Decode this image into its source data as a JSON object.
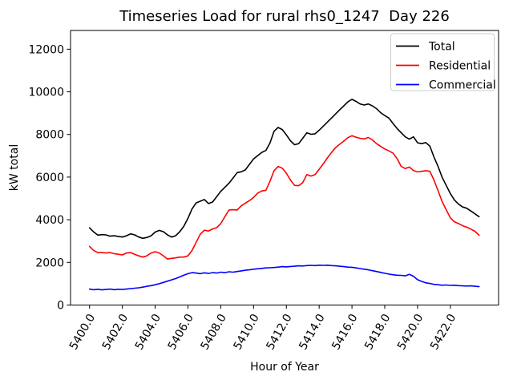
{
  "figure": {
    "background": "#ffffff"
  },
  "chart_data": {
    "type": "line",
    "title": "Timeseries Load for rural rhs0_1247  Day 226",
    "xlabel": "Hour of Year",
    "ylabel": "kW total",
    "grid": false,
    "legend_position": "upper right",
    "xlim": [
      5398.84,
      5424.94
    ],
    "ylim": [
      0,
      12878
    ],
    "xticks": {
      "values": [
        5400,
        5402,
        5404,
        5406,
        5408,
        5410,
        5412,
        5414,
        5416,
        5418,
        5420,
        5422
      ],
      "labels": [
        "5400.0",
        "5402.0",
        "5404.0",
        "5406.0",
        "5408.0",
        "5410.0",
        "5412.0",
        "5414.0",
        "5416.0",
        "5418.0",
        "5420.0",
        "5422.0"
      ]
    },
    "yticks": {
      "values": [
        0,
        2000,
        4000,
        6000,
        8000,
        10000,
        12000
      ],
      "labels": [
        "0",
        "2000",
        "4000",
        "6000",
        "8000",
        "10000",
        "12000"
      ]
    },
    "x": [
      5400.0,
      5400.25,
      5400.5,
      5400.75,
      5401.0,
      5401.25,
      5401.5,
      5401.75,
      5402.0,
      5402.25,
      5402.5,
      5402.75,
      5403.0,
      5403.25,
      5403.5,
      5403.75,
      5404.0,
      5404.25,
      5404.5,
      5404.75,
      5405.0,
      5405.25,
      5405.5,
      5405.75,
      5406.0,
      5406.25,
      5406.5,
      5406.75,
      5407.0,
      5407.25,
      5407.5,
      5407.75,
      5408.0,
      5408.25,
      5408.5,
      5408.75,
      5409.0,
      5409.25,
      5409.5,
      5409.75,
      5410.0,
      5410.25,
      5410.5,
      5410.75,
      5411.0,
      5411.25,
      5411.5,
      5411.75,
      5412.0,
      5412.25,
      5412.5,
      5412.75,
      5413.0,
      5413.25,
      5413.5,
      5413.75,
      5414.0,
      5414.25,
      5414.5,
      5414.75,
      5415.0,
      5415.25,
      5415.5,
      5415.75,
      5416.0,
      5416.25,
      5416.5,
      5416.75,
      5417.0,
      5417.25,
      5417.5,
      5417.75,
      5418.0,
      5418.25,
      5418.5,
      5418.75,
      5419.0,
      5419.25,
      5419.5,
      5419.75,
      5420.0,
      5420.25,
      5420.5,
      5420.75,
      5421.0,
      5421.25,
      5421.5,
      5421.75,
      5422.0,
      5422.25,
      5422.5,
      5422.75,
      5423.0,
      5423.25,
      5423.5,
      5423.75
    ],
    "series": [
      {
        "name": "Total",
        "color": "#000000",
        "values": [
          3620,
          3430,
          3280,
          3300,
          3290,
          3230,
          3250,
          3220,
          3190,
          3250,
          3340,
          3290,
          3190,
          3130,
          3170,
          3250,
          3420,
          3500,
          3440,
          3290,
          3190,
          3250,
          3440,
          3700,
          4070,
          4510,
          4790,
          4870,
          4950,
          4760,
          4830,
          5080,
          5330,
          5520,
          5710,
          5960,
          6210,
          6250,
          6340,
          6600,
          6850,
          7000,
          7160,
          7250,
          7600,
          8150,
          8330,
          8230,
          7980,
          7700,
          7520,
          7570,
          7820,
          8080,
          8010,
          8030,
          8200,
          8390,
          8580,
          8770,
          8960,
          9150,
          9340,
          9530,
          9650,
          9550,
          9430,
          9380,
          9430,
          9340,
          9210,
          9020,
          8890,
          8770,
          8520,
          8280,
          8080,
          7890,
          7780,
          7890,
          7610,
          7570,
          7620,
          7450,
          6940,
          6500,
          5990,
          5610,
          5230,
          4920,
          4730,
          4600,
          4540,
          4410,
          4280,
          4140
        ]
      },
      {
        "name": "Residential",
        "color": "#ff0000",
        "values": [
          2750,
          2560,
          2460,
          2460,
          2440,
          2460,
          2410,
          2380,
          2350,
          2440,
          2460,
          2380,
          2310,
          2250,
          2310,
          2440,
          2500,
          2440,
          2310,
          2160,
          2190,
          2210,
          2250,
          2250,
          2310,
          2560,
          2940,
          3320,
          3510,
          3470,
          3570,
          3630,
          3820,
          4140,
          4450,
          4470,
          4460,
          4650,
          4780,
          4900,
          5050,
          5250,
          5350,
          5380,
          5800,
          6300,
          6500,
          6420,
          6180,
          5860,
          5610,
          5600,
          5740,
          6120,
          6050,
          6120,
          6370,
          6620,
          6900,
          7150,
          7380,
          7540,
          7690,
          7850,
          7940,
          7870,
          7820,
          7790,
          7860,
          7740,
          7570,
          7440,
          7320,
          7230,
          7130,
          6870,
          6500,
          6400,
          6470,
          6310,
          6240,
          6270,
          6300,
          6270,
          5860,
          5360,
          4850,
          4470,
          4090,
          3900,
          3820,
          3720,
          3650,
          3560,
          3460,
          3270
        ]
      },
      {
        "name": "Commercial",
        "color": "#0000ff",
        "values": [
          750,
          720,
          740,
          710,
          730,
          750,
          720,
          740,
          730,
          750,
          770,
          790,
          810,
          840,
          880,
          910,
          950,
          1000,
          1060,
          1120,
          1180,
          1240,
          1320,
          1400,
          1470,
          1520,
          1500,
          1470,
          1510,
          1480,
          1520,
          1500,
          1540,
          1520,
          1560,
          1540,
          1570,
          1600,
          1630,
          1650,
          1680,
          1700,
          1720,
          1740,
          1750,
          1760,
          1780,
          1800,
          1790,
          1810,
          1820,
          1840,
          1830,
          1850,
          1860,
          1850,
          1870,
          1860,
          1870,
          1850,
          1840,
          1820,
          1800,
          1780,
          1770,
          1740,
          1710,
          1680,
          1650,
          1610,
          1570,
          1530,
          1490,
          1450,
          1420,
          1400,
          1390,
          1370,
          1440,
          1350,
          1190,
          1110,
          1040,
          1010,
          970,
          950,
          930,
          940,
          920,
          930,
          910,
          900,
          890,
          900,
          880,
          860
        ]
      }
    ]
  }
}
